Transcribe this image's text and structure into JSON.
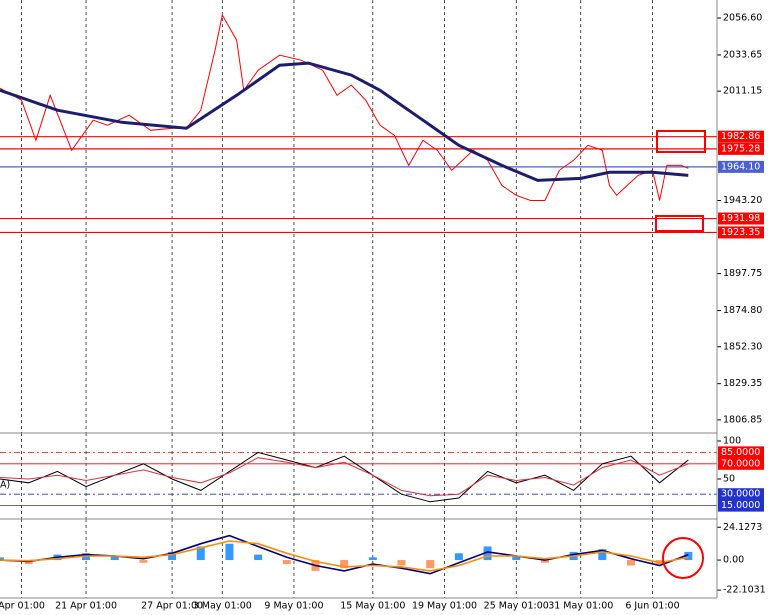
{
  "chart_data": [
    {
      "type": "line",
      "xlim": [
        0,
        100
      ],
      "xticks": [
        {
          "value": 3,
          "label": "Apr 01:00"
        },
        {
          "value": 12,
          "label": "21 Apr 01:00"
        },
        {
          "value": 24,
          "label": "27 Apr 01:00"
        },
        {
          "value": 31,
          "label": "3 May 01:00"
        },
        {
          "value": 41,
          "label": "9 May 01:00"
        },
        {
          "value": 52,
          "label": "15 May 01:00"
        },
        {
          "value": 62,
          "label": "19 May 01:00"
        },
        {
          "value": 72,
          "label": "25 May 01:00"
        },
        {
          "value": 81,
          "label": "31 May 01:00"
        },
        {
          "value": 91,
          "label": "6 Jun 01:00"
        }
      ],
      "ylim": [
        1798.7,
        2067.8
      ],
      "yticks": [
        {
          "value": 2056.6,
          "label": "2056.60"
        },
        2033.65,
        2011.15,
        {
          "value": 1943.2,
          "label": "1943.20"
        },
        1897.75,
        {
          "value": 1874.8,
          "label": "1874.80"
        },
        {
          "value": 1852.3,
          "label": "1852.30"
        },
        1829.35,
        1806.85
      ],
      "levels": [
        {
          "value": 1982.86,
          "label": "1982.86",
          "color": "#ff0000"
        },
        {
          "value": 1975.28,
          "label": "1975.28",
          "color": "#ff0000"
        },
        {
          "value": 1964.1,
          "label": "1964.10",
          "color": "#4a5fd0"
        },
        {
          "value": 1931.98,
          "label": "1931.98",
          "color": "#ff0000"
        },
        {
          "value": 1923.35,
          "label": "1923.35",
          "color": "#ff0000"
        }
      ],
      "series": [
        {
          "color": "#ff0000",
          "x": [
            0,
            3,
            5,
            7,
            10,
            13,
            15,
            18,
            21,
            24,
            26,
            28,
            30,
            31,
            33,
            34,
            36,
            39,
            42,
            45,
            47,
            49,
            51,
            53,
            55,
            57,
            59,
            61,
            63,
            66,
            68,
            70,
            72,
            74,
            76,
            78,
            80,
            82,
            84,
            85,
            86,
            89,
            91,
            92,
            93,
            95,
            96
          ],
          "values": [
            2013.0,
            2005.5,
            1980.6,
            2008.6,
            1974.4,
            1993.1,
            1990.0,
            1996.2,
            1986.8,
            1988.1,
            1988.1,
            1999.3,
            2036.7,
            2058.5,
            2042.9,
            2011.7,
            2024.2,
            2033.5,
            2030.4,
            2024.2,
            2008.6,
            2014.9,
            2005.5,
            1990.0,
            1983.7,
            1965.0,
            1980.6,
            1974.4,
            1961.9,
            1974.4,
            1968.2,
            1952.6,
            1946.4,
            1943.2,
            1943.2,
            1961.9,
            1968.2,
            1977.5,
            1974.4,
            1952.6,
            1946.4,
            1958.8,
            1961.9,
            1943.2,
            1965.0,
            1965.0,
            1963.2
          ]
        },
        {
          "color": "#1c1c70",
          "x": [
            0,
            8,
            17,
            26,
            33,
            39,
            43,
            49,
            53,
            59,
            64,
            70,
            75,
            81,
            85,
            91,
            96
          ],
          "values": [
            2011.7,
            1999.3,
            1991.8,
            1988.1,
            2008.6,
            2027.3,
            2028.6,
            2021.1,
            2011.7,
            1993.1,
            1977.5,
            1965.0,
            1955.7,
            1956.9,
            1960.7,
            1960.7,
            1958.8
          ]
        }
      ]
    },
    {
      "type": "line",
      "annotation": "A)",
      "xlim": [
        0,
        100
      ],
      "ylim": [
        -2.6,
        110.5
      ],
      "yticks": [
        100,
        50
      ],
      "levels": [
        {
          "value": 85,
          "label": "85.0000",
          "color": "#ff0000"
        },
        {
          "value": 70,
          "label": "70.0000",
          "color": "#ff0000"
        },
        {
          "value": 30,
          "label": "30.0000",
          "color": "#2233cc"
        },
        {
          "value": 15,
          "label": "15.0000",
          "color": "#2233cc"
        }
      ],
      "series": [
        {
          "color": "#000000",
          "x": [
            0,
            4,
            8,
            12,
            16,
            20,
            24,
            28,
            32,
            36,
            40,
            44,
            48,
            52,
            56,
            60,
            64,
            68,
            72,
            76,
            80,
            84,
            88,
            92,
            96
          ],
          "values": [
            50,
            45,
            60,
            40,
            55,
            70,
            50,
            35,
            60,
            85,
            75,
            65,
            80,
            55,
            30,
            20,
            25,
            60,
            45,
            55,
            35,
            70,
            80,
            45,
            75
          ]
        },
        {
          "color": "#e0303a",
          "x": [
            0,
            4,
            8,
            12,
            16,
            20,
            24,
            28,
            32,
            36,
            40,
            44,
            48,
            52,
            56,
            60,
            64,
            68,
            72,
            76,
            80,
            84,
            88,
            92,
            96
          ],
          "values": [
            52,
            50,
            55,
            48,
            55,
            62,
            52,
            45,
            58,
            78,
            72,
            65,
            72,
            55,
            35,
            28,
            30,
            55,
            48,
            52,
            42,
            65,
            75,
            55,
            70
          ]
        }
      ]
    },
    {
      "type": "macd",
      "xlim": [
        0,
        100
      ],
      "ylim": [
        -27.9,
        30.2
      ],
      "yticks": [
        24.1273,
        {
          "value": 0,
          "label": "0.00"
        },
        -22.1031
      ],
      "series": [
        {
          "type": "bar",
          "color": "#3399ff",
          "negative_color": "#ff9966",
          "x": [
            0,
            4,
            8,
            12,
            16,
            20,
            24,
            28,
            32,
            36,
            40,
            44,
            48,
            52,
            56,
            60,
            64,
            68,
            72,
            76,
            80,
            84,
            88,
            92,
            96
          ],
          "values": [
            2,
            -3,
            4,
            5,
            3,
            -2,
            6,
            10,
            12,
            4,
            -3,
            -8,
            -6,
            2,
            -4,
            -6,
            5,
            10,
            3,
            -2,
            6,
            8,
            -4,
            -3,
            6
          ]
        },
        {
          "type": "line",
          "color": "#000080",
          "x": [
            0,
            4,
            8,
            12,
            16,
            20,
            24,
            28,
            32,
            36,
            40,
            44,
            48,
            52,
            56,
            60,
            64,
            68,
            72,
            76,
            80,
            84,
            88,
            92,
            96
          ],
          "values": [
            0,
            -1,
            2,
            4,
            3,
            1,
            5,
            12,
            18,
            10,
            2,
            -4,
            -8,
            -3,
            -6,
            -10,
            -2,
            6,
            3,
            0,
            4,
            7,
            1,
            -4,
            4
          ]
        },
        {
          "type": "line",
          "color": "#ff8c00",
          "x": [
            0,
            4,
            8,
            12,
            16,
            20,
            24,
            28,
            32,
            36,
            40,
            44,
            48,
            52,
            56,
            60,
            64,
            68,
            72,
            76,
            80,
            84,
            88,
            92,
            96
          ],
          "values": [
            0,
            -0.5,
            1,
            3,
            3,
            2,
            4,
            9,
            14,
            12,
            5,
            -1,
            -5,
            -4,
            -5,
            -8,
            -4,
            3,
            3,
            1,
            3,
            6,
            3,
            -2,
            2
          ]
        }
      ]
    }
  ]
}
